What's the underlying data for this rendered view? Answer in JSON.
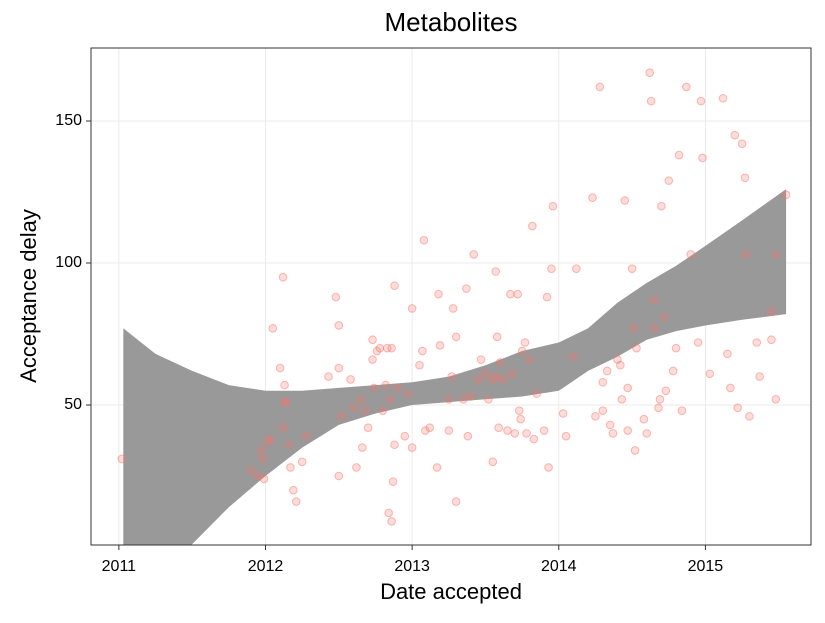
{
  "chart_data": {
    "type": "scatter",
    "title": "Metabolites",
    "x_label": "Date accepted",
    "y_label": "Acceptance delay",
    "color": "#f8766d",
    "ribbon_color": "#999999",
    "grid": true,
    "xlim": [
      2010.81,
      2015.72
    ],
    "ylim": [
      0.7,
      175.7
    ],
    "xticks": [
      2011,
      2012,
      2013,
      2014,
      2015
    ],
    "yticks": [
      50,
      100,
      150
    ],
    "x": [
      2011.02,
      2011.9,
      2011.95,
      2011.97,
      2011.98,
      2011.99,
      2012.02,
      2012.03,
      2012.05,
      2012.1,
      2012.12,
      2012.13,
      2012.13,
      2012.14,
      2012.12,
      2012.16,
      2012.17,
      2012.19,
      2012.21,
      2012.25,
      2012.28,
      2012.43,
      2012.48,
      2012.5,
      2012.5,
      2012.5,
      2012.52,
      2012.58,
      2012.6,
      2012.62,
      2012.65,
      2012.66,
      2012.68,
      2012.7,
      2012.73,
      2012.73,
      2012.74,
      2012.76,
      2012.78,
      2012.8,
      2012.82,
      2012.83,
      2012.84,
      2012.85,
      2012.86,
      2012.86,
      2012.87,
      2012.88,
      2012.88,
      2012.9,
      2012.95,
      2012.97,
      2013.0,
      2013.0,
      2013.05,
      2013.07,
      2013.08,
      2013.09,
      2013.12,
      2013.17,
      2013.18,
      2013.19,
      2013.25,
      2013.25,
      2013.27,
      2013.28,
      2013.3,
      2013.3,
      2013.35,
      2013.37,
      2013.38,
      2013.4,
      2013.42,
      2013.45,
      2013.47,
      2013.5,
      2013.52,
      2013.55,
      2013.55,
      2013.57,
      2013.58,
      2013.58,
      2013.59,
      2013.6,
      2013.62,
      2013.65,
      2013.67,
      2013.68,
      2013.7,
      2013.72,
      2013.73,
      2013.74,
      2013.75,
      2013.77,
      2013.78,
      2013.8,
      2013.82,
      2013.83,
      2013.85,
      2013.9,
      2013.92,
      2013.93,
      2013.95,
      2013.96,
      2014.03,
      2014.05,
      2014.1,
      2014.12,
      2014.23,
      2014.25,
      2014.28,
      2014.3,
      2014.3,
      2014.33,
      2014.35,
      2014.37,
      2014.4,
      2014.42,
      2014.43,
      2014.45,
      2014.47,
      2014.47,
      2014.5,
      2014.51,
      2014.52,
      2014.53,
      2014.58,
      2014.6,
      2014.62,
      2014.63,
      2014.65,
      2014.65,
      2014.68,
      2014.69,
      2014.7,
      2014.72,
      2014.73,
      2014.75,
      2014.78,
      2014.8,
      2014.82,
      2014.84,
      2014.87,
      2014.9,
      2014.95,
      2014.97,
      2014.98,
      2015.03,
      2015.12,
      2015.15,
      2015.17,
      2015.2,
      2015.22,
      2015.25,
      2015.27,
      2015.28,
      2015.3,
      2015.35,
      2015.37,
      2015.45,
      2015.45,
      2015.48,
      2015.48,
      2015.55
    ],
    "values": [
      31,
      27,
      25,
      34,
      31,
      24,
      37,
      38,
      77,
      63,
      95,
      57,
      51,
      51,
      42,
      36,
      28,
      20,
      16,
      30,
      39,
      60,
      88,
      78,
      63,
      25,
      46,
      59,
      49,
      28,
      52,
      35,
      48,
      42,
      73,
      66,
      56,
      69,
      70,
      48,
      57,
      70,
      12,
      52,
      9,
      70,
      23,
      92,
      36,
      56,
      39,
      54,
      35,
      84,
      64,
      69,
      108,
      41,
      42,
      28,
      89,
      71,
      52,
      41,
      60,
      84,
      74,
      16,
      52,
      91,
      39,
      53,
      103,
      59,
      66,
      61,
      52,
      59,
      30,
      97,
      74,
      60,
      42,
      65,
      59,
      41,
      89,
      61,
      40,
      89,
      48,
      45,
      69,
      72,
      40,
      66,
      113,
      38,
      54,
      41,
      88,
      28,
      98,
      120,
      47,
      39,
      67,
      98,
      123,
      46,
      162,
      58,
      48,
      62,
      43,
      40,
      66,
      64,
      52,
      122,
      56,
      41,
      98,
      77,
      34,
      70,
      45,
      40,
      167,
      157,
      87,
      77,
      49,
      52,
      120,
      81,
      55,
      129,
      62,
      70,
      138,
      48,
      162,
      103,
      72,
      157,
      137,
      61,
      158,
      68,
      56,
      145,
      49,
      142,
      130,
      103,
      46,
      72,
      60,
      73,
      83,
      52,
      103,
      124
    ],
    "ribbon": {
      "x": [
        2011.03,
        2011.25,
        2011.5,
        2011.75,
        2012.0,
        2012.25,
        2012.5,
        2012.75,
        2013.0,
        2013.25,
        2013.5,
        2013.75,
        2014.0,
        2014.2,
        2014.4,
        2014.6,
        2014.8,
        2015.0,
        2015.25,
        2015.55
      ],
      "lower": [
        -30,
        -12,
        1,
        14,
        25,
        35,
        43,
        47,
        50,
        51,
        52,
        53,
        55,
        62,
        67,
        73,
        76,
        78,
        80,
        82
      ],
      "upper": [
        77,
        68,
        62,
        57,
        55,
        55,
        56,
        57,
        58,
        60,
        64,
        69,
        72,
        77,
        86,
        93,
        99,
        106,
        115,
        126
      ]
    }
  }
}
